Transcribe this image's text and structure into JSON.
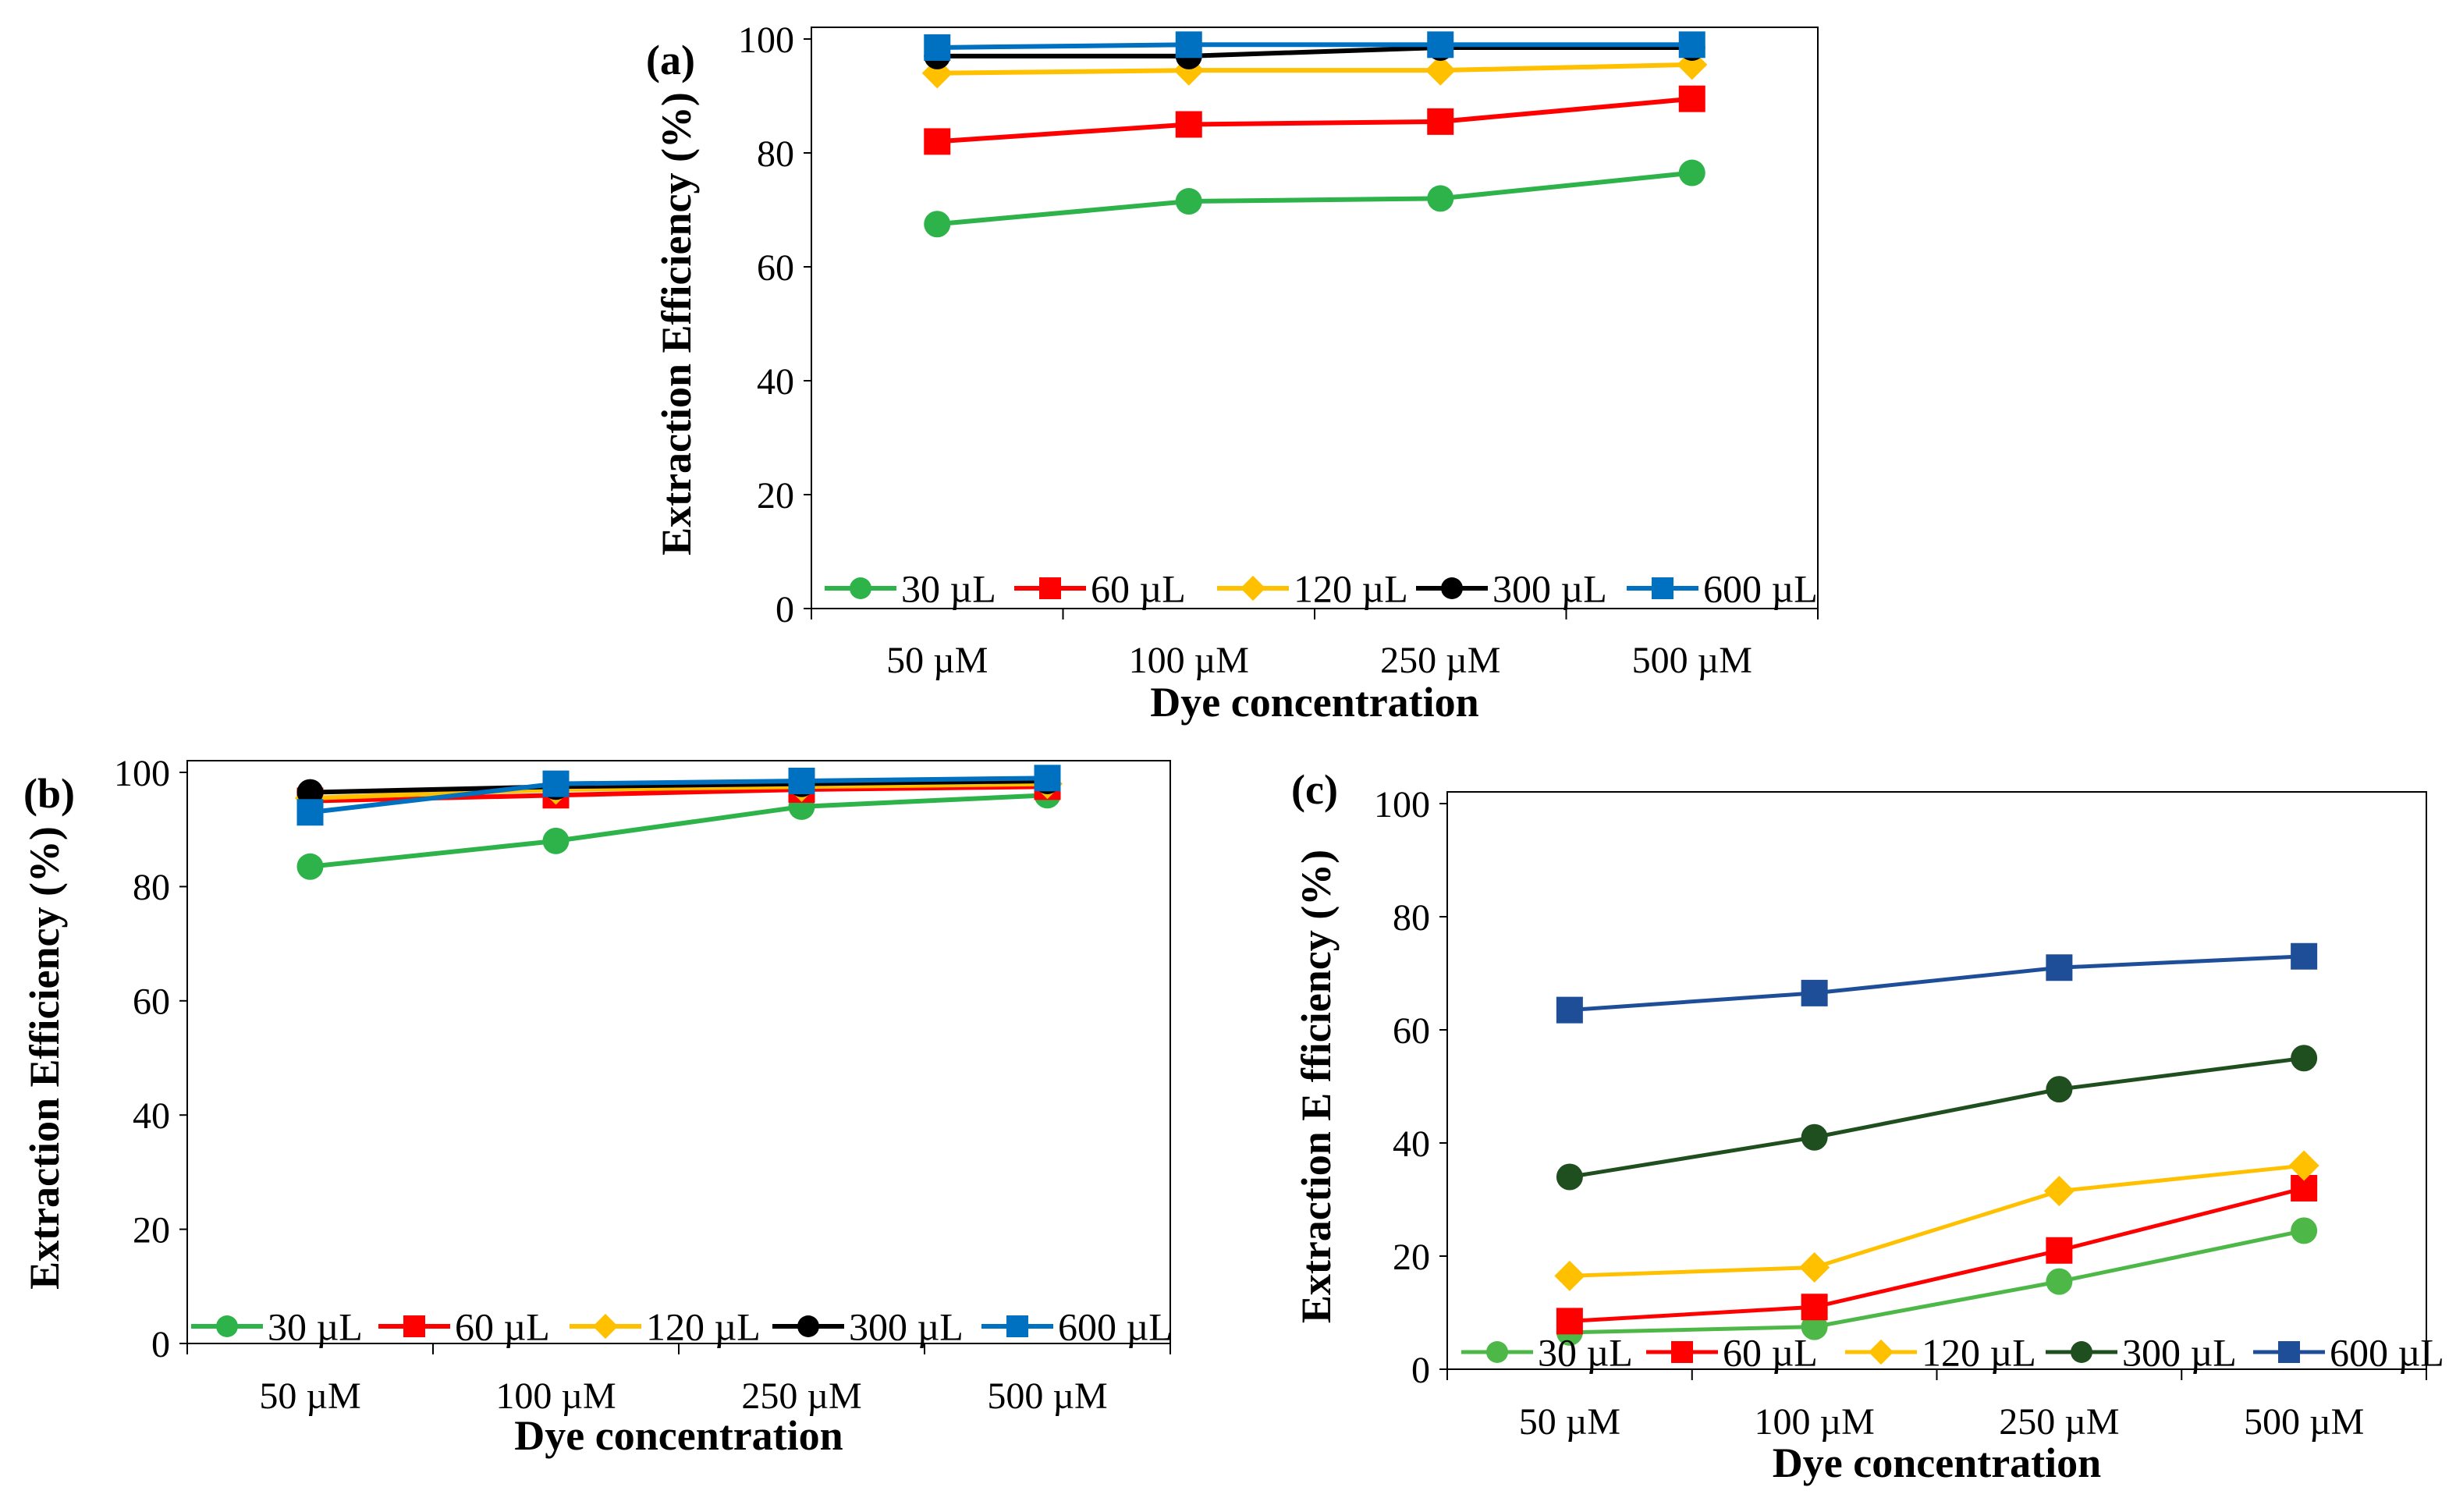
{
  "chart_data": [
    {
      "panel": "(a)",
      "type": "line",
      "categories": [
        "50 µM",
        "100 µM",
        "250 µM",
        "500 µM"
      ],
      "xlabel": "Dye concentration",
      "ylabel": "Extraction Efficiency (%)",
      "ylim": [
        0,
        100
      ],
      "yticks": [
        "0",
        "20",
        "40",
        "60",
        "80",
        "100"
      ],
      "series": [
        {
          "name": "30 µL",
          "color": "#2db34a",
          "marker": "circle",
          "values": [
            67.5,
            71.5,
            72,
            76.5
          ]
        },
        {
          "name": "60 µL",
          "color": "#ff0000",
          "marker": "square",
          "values": [
            82,
            85,
            85.5,
            89.5
          ]
        },
        {
          "name": "120 µL",
          "color": "#ffc000",
          "marker": "diamond",
          "values": [
            94,
            94.5,
            94.5,
            95.5
          ]
        },
        {
          "name": "300 µL",
          "color": "#000000",
          "marker": "circle",
          "values": [
            97,
            97,
            98.5,
            98.5
          ]
        },
        {
          "name": "600 µL",
          "color": "#0070c0",
          "marker": "square",
          "values": [
            98.5,
            99,
            99,
            99
          ]
        }
      ]
    },
    {
      "panel": "(b)",
      "type": "line",
      "categories": [
        "50 µM",
        "100 µM",
        "250 µM",
        "500 µM"
      ],
      "xlabel": "Dye concentration",
      "ylabel": "Extraction Efficiency (%)",
      "ylim": [
        0,
        100
      ],
      "yticks": [
        "0",
        "20",
        "40",
        "60",
        "80",
        "100"
      ],
      "series": [
        {
          "name": "30 µL",
          "color": "#2db34a",
          "marker": "circle",
          "values": [
            83.5,
            88,
            94,
            96
          ]
        },
        {
          "name": "60 µL",
          "color": "#ff0000",
          "marker": "square",
          "values": [
            95,
            96,
            97,
            97.5
          ]
        },
        {
          "name": "120 µL",
          "color": "#ffc000",
          "marker": "diamond",
          "values": [
            95.5,
            97,
            97.5,
            98
          ]
        },
        {
          "name": "300 µL",
          "color": "#000000",
          "marker": "circle",
          "values": [
            96.5,
            97.5,
            98,
            98.5
          ]
        },
        {
          "name": "600 µL",
          "color": "#0070c0",
          "marker": "square",
          "values": [
            93,
            98,
            98.5,
            99
          ]
        }
      ]
    },
    {
      "panel": "(c)",
      "type": "line",
      "categories": [
        "50 µM",
        "100 µM",
        "250 µM",
        "500 µM"
      ],
      "xlabel": "Dye concentration",
      "ylabel": "Extraction E fficiency (%)",
      "ylim": [
        0,
        100
      ],
      "yticks": [
        "0",
        "20",
        "40",
        "60",
        "80",
        "100"
      ],
      "series": [
        {
          "name": "30 µL",
          "color": "#4db848",
          "marker": "circle",
          "values": [
            6.5,
            7.5,
            15.5,
            24.5
          ]
        },
        {
          "name": "60 µL",
          "color": "#ff0000",
          "marker": "square",
          "values": [
            8.5,
            11,
            21,
            32
          ]
        },
        {
          "name": "120 µL",
          "color": "#ffc000",
          "marker": "diamond",
          "values": [
            16.5,
            18,
            31.5,
            36
          ]
        },
        {
          "name": "300 µL",
          "color": "#1f4e1f",
          "marker": "circle",
          "values": [
            34,
            41,
            49.5,
            55
          ]
        },
        {
          "name": "600 µL",
          "color": "#1f4e99",
          "marker": "square",
          "values": [
            63.5,
            66.5,
            71,
            73
          ]
        }
      ]
    }
  ]
}
